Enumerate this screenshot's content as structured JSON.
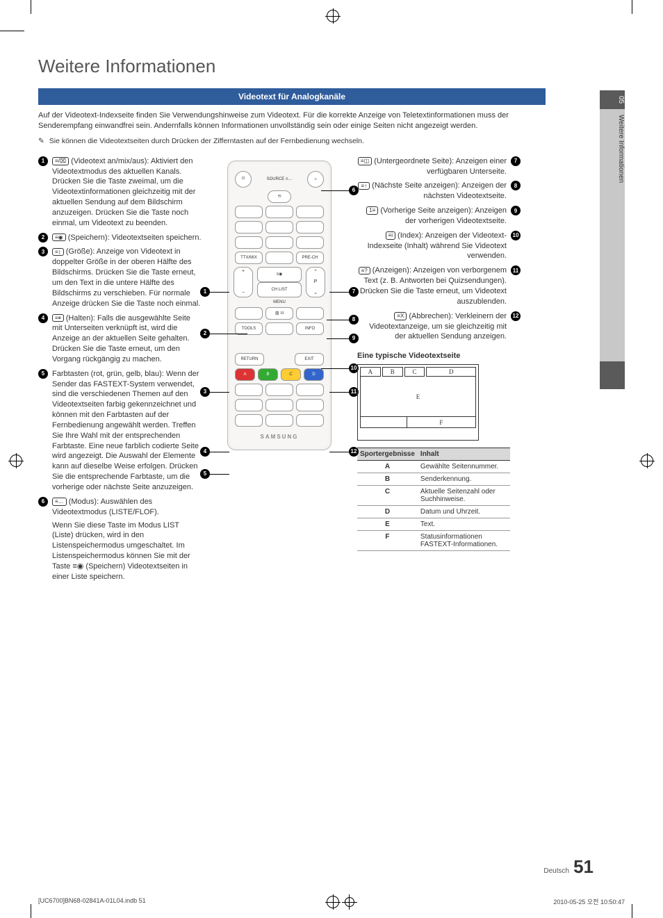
{
  "side_tab": {
    "number": "05",
    "label": "Weitere Informationen"
  },
  "h1": "Weitere Informationen",
  "blue_bar": "Videotext für Analogkanäle",
  "intro": "Auf der Videotext-Indexseite finden Sie Verwendungshinweise zum Videotext. Für die korrekte Anzeige von Teletextinformationen muss der Senderempfang einwandfrei sein. Andernfalls können Informationen unvollständig sein oder einige Seiten nicht angezeigt werden.",
  "note_icon": "✎",
  "note": "Sie können die Videotextseiten durch Drücken der Zifferntasten auf der Fernbedienung wechseln.",
  "left_items": [
    {
      "n": "1",
      "icon": "≡/⌧",
      "title": "(Videotext an/mix/aus):",
      "body": "Aktiviert den Videotextmodus des aktuellen Kanals. Drücken Sie die Taste zweimal, um die Videotextinformationen gleichzeitig mit der aktuellen Sendung auf dem Bildschirm anzuzeigen. Drücken Sie die Taste noch einmal, um Videotext zu beenden."
    },
    {
      "n": "2",
      "icon": "≡◉",
      "title": "(Speichern):",
      "body": "Videotextseiten speichern."
    },
    {
      "n": "3",
      "icon": "≡↕",
      "title": "(Größe):",
      "body": "Anzeige von Videotext in doppelter Größe in der oberen Hälfte des Bildschirms. Drücken Sie die Taste erneut, um den Text in die untere Hälfte des Bildschirms zu verschieben. Für normale Anzeige drücken Sie die Taste noch einmal."
    },
    {
      "n": "4",
      "icon": "≡⏸",
      "title": "(Halten):",
      "body": "Falls die ausgewählte Seite mit Unterseiten verknüpft ist, wird die Anzeige an der aktuellen Seite gehalten. Drücken Sie die Taste erneut, um den Vorgang rückgängig zu machen."
    },
    {
      "n": "5",
      "icon": "",
      "title": "Farbtasten (rot, grün, gelb, blau):",
      "body": "Wenn der Sender das FASTEXT-System verwendet, sind die verschiedenen Themen auf den Videotextseiten farbig gekennzeichnet und können mit den Farbtasten auf der Fernbedienung angewählt werden. Treffen Sie Ihre Wahl mit der entsprechenden Farbtaste. Eine neue farblich codierte Seite wird angezeigt. Die Auswahl der Elemente kann auf dieselbe Weise erfolgen. Drücken Sie die entsprechende Farbtaste, um die vorherige oder nächste Seite anzuzeigen."
    },
    {
      "n": "6",
      "icon": "≡…",
      "title": "(Modus):",
      "body": "Auswählen des Videotextmodus (LISTE/FLOF).",
      "body2": "Wenn Sie diese Taste im Modus LIST (Liste) drücken, wird in den Listenspeichermodus umgeschaltet. Im Listenspeichermodus können Sie mit der Taste ≡◉ (Speichern) Videotextseiten in einer Liste speichern."
    }
  ],
  "right_items": [
    {
      "n": "7",
      "icon": "≡◫",
      "title": "(Untergeordnete Seite):",
      "body": "Anzeigen einer verfügbaren Unterseite."
    },
    {
      "n": "8",
      "icon": "≡↑",
      "title": "(Nächste Seite anzeigen):",
      "body": "Anzeigen der nächsten Videotextseite."
    },
    {
      "n": "9",
      "icon": "1≡",
      "title": "(Vorherige Seite anzeigen):",
      "body": "Anzeigen der vorherigen Videotextseite."
    },
    {
      "n": "10",
      "icon": "≡i",
      "title": "(Index):",
      "body": "Anzeigen der Videotext-Indexseite (Inhalt) während Sie Videotext verwenden."
    },
    {
      "n": "11",
      "icon": "≡?",
      "title": "(Anzeigen):",
      "body": "Anzeigen von verborgenem Text (z. B. Antworten bei Quizsendungen). Drücken Sie die Taste erneut, um Videotext auszublenden."
    },
    {
      "n": "12",
      "icon": "≡X",
      "title": "(Abbrechen):",
      "body": "Verkleinern der Videotextanzeige, um sie gleichzeitig mit der aktuellen Sendung anzeigen."
    }
  ],
  "typical_title": "Eine typische Videotextseite",
  "schema_boxes": {
    "a": "A",
    "b": "B",
    "c": "C",
    "d": "D",
    "e": "E",
    "f": "F"
  },
  "table": {
    "headers": [
      "Sportergebnisse",
      "Inhalt"
    ],
    "rows": [
      [
        "A",
        "Gewählte Seitennummer."
      ],
      [
        "B",
        "Senderkennung."
      ],
      [
        "C",
        "Aktuelle Seitenzahl oder Suchhinweise."
      ],
      [
        "D",
        "Datum und Uhrzeit."
      ],
      [
        "E",
        "Text."
      ],
      [
        "F",
        "Statusinformationen FASTEXT-Informationen."
      ]
    ]
  },
  "remote": {
    "source": "SOURCE ≡…",
    "ttx": "TTX/MIX",
    "prech": "PRE-CH",
    "chlist": "CH LIST",
    "menu": "MENU",
    "tools": "TOOLS",
    "info": "INFO",
    "return": "RETURN",
    "exit": "EXIT",
    "p": "P",
    "brand": "SAMSUNG",
    "colors": {
      "a": "A",
      "b": "B",
      "c": "C",
      "d": "D"
    }
  },
  "footer": {
    "lang": "Deutsch",
    "page": "51"
  },
  "print": {
    "left": "[UC6700]BN68-02841A-01L04.indb   51",
    "right": "2010-05-25   오전 10:50:47"
  }
}
